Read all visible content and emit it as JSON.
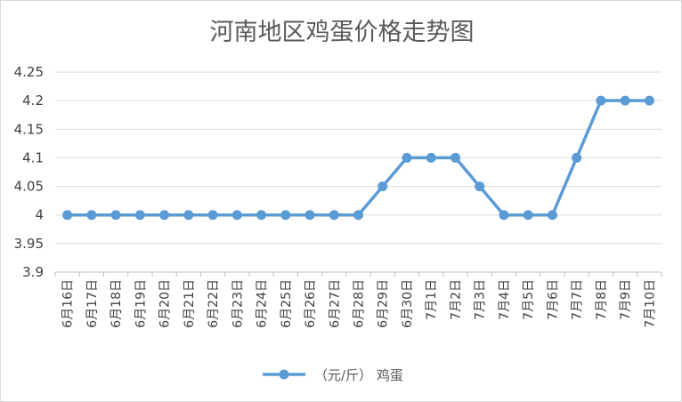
{
  "chart_data": {
    "type": "line",
    "title": "河南地区鸡蛋价格走势图",
    "categories": [
      "6月16日",
      "6月17日",
      "6月18日",
      "6月19日",
      "6月20日",
      "6月21日",
      "6月22日",
      "6月23日",
      "6月24日",
      "6月25日",
      "6月26日",
      "6月27日",
      "6月28日",
      "6月29日",
      "6月30日",
      "7月1日",
      "7月2日",
      "7月3日",
      "7月4日",
      "7月5日",
      "7月6日",
      "7月7日",
      "7月8日",
      "7月9日",
      "7月10日"
    ],
    "series": [
      {
        "name": "（元/斤） 鸡蛋",
        "color": "#5b9bd5",
        "values": [
          4,
          4,
          4,
          4,
          4,
          4,
          4,
          4,
          4,
          4,
          4,
          4,
          4,
          4.05,
          4.1,
          4.1,
          4.1,
          4.05,
          4,
          4,
          4,
          4.1,
          4.2,
          4.2,
          4.2
        ]
      }
    ],
    "ylim": [
      3.9,
      4.25
    ],
    "yticks": [
      "3.9",
      "3.95",
      "4",
      "4.05",
      "4.1",
      "4.15",
      "4.2",
      "4.25"
    ],
    "xlabel": "",
    "ylabel": "",
    "grid": "horizontal",
    "legend": "bottom"
  }
}
